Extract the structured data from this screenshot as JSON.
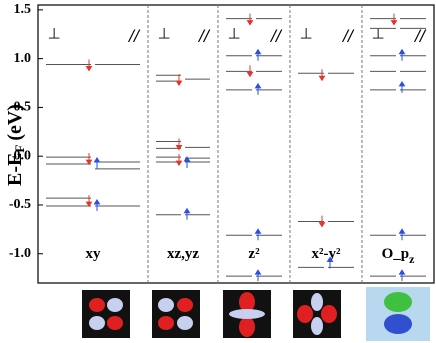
{
  "chart_data": {
    "type": "levels",
    "ylabel": {
      "main": "E-E",
      "sub": "F",
      "unit": "(eV)"
    },
    "ylim": [
      -1.3,
      1.55
    ],
    "yticks": [
      {
        "value": -1.0,
        "label": "-1.0"
      },
      {
        "value": -0.5,
        "label": "-0.5"
      },
      {
        "value": 0,
        "label": "0.0"
      },
      {
        "value": 0.5,
        "label": "0.5"
      },
      {
        "value": 1.0,
        "label": "1.0"
      },
      {
        "value": 1.5,
        "label": "1.5"
      }
    ],
    "perp_symbol": "⊥",
    "par_symbol": "//",
    "up_color": "#e8332a",
    "down_color": "#2a4fe8",
    "panels": [
      {
        "label": "xy",
        "perp": [
          0.94,
          -0.01,
          -0.08,
          -0.43,
          -0.51
        ],
        "par": [
          0.94,
          -0.06,
          -0.13,
          -0.51
        ],
        "up": [
          0.94,
          -0.02,
          -0.45
        ],
        "down": [
          -0.08,
          -0.51
        ]
      },
      {
        "label": "xz,yz",
        "perp": [
          0.83,
          0.77,
          0.15,
          0.08,
          -0.01,
          -0.06,
          -0.6
        ],
        "par": [
          0.79,
          0.09,
          -0.02,
          -0.06,
          -0.6
        ],
        "up": [
          0.79,
          0.13,
          -0.03
        ],
        "down": [
          -0.07,
          -0.6
        ]
      },
      {
        "label": "z²",
        "perp": [
          1.41,
          1.03,
          0.87,
          0.68,
          -0.81,
          -1.23
        ],
        "par": [
          1.41,
          1.03,
          0.87,
          0.68,
          -0.81,
          -1.23
        ],
        "up": [
          1.41,
          0.88
        ],
        "down": [
          1.03,
          0.68,
          -0.81,
          -1.23
        ]
      },
      {
        "label": "x²-y²",
        "perp": [
          0.85,
          -0.67,
          -1.14
        ],
        "par": [
          0.85,
          -0.67,
          -1.14
        ],
        "up": [
          0.84,
          -0.66
        ],
        "down": [
          -1.1
        ]
      },
      {
        "label": "O_p",
        "label_sub": "z",
        "perp": [
          1.41,
          1.31,
          1.03,
          0.87,
          0.68,
          -0.81,
          -1.23
        ],
        "par": [
          1.41,
          1.31,
          1.03,
          0.87,
          0.68,
          -0.81,
          -1.23
        ],
        "up": [
          1.41
        ],
        "down": [
          1.03,
          0.7,
          -0.81,
          -1.23
        ]
      }
    ]
  }
}
